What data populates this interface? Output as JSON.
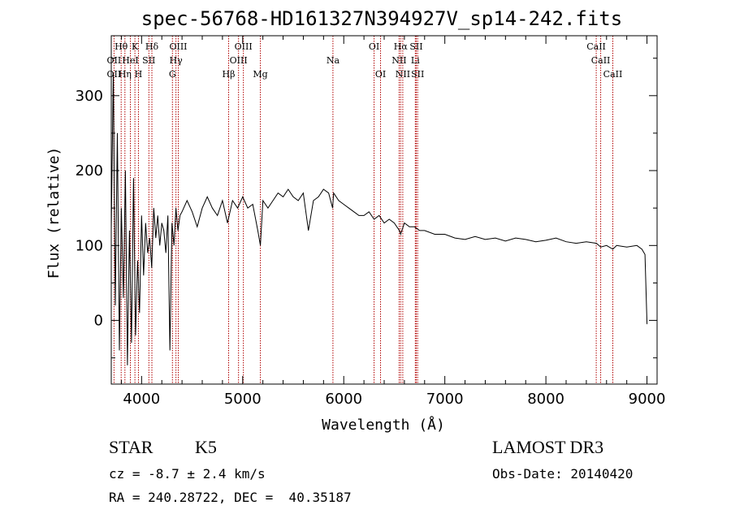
{
  "chart_data": {
    "type": "line",
    "title": "spec-56768-HD161327N394927V_sp14-242.fits",
    "xlabel": "Wavelength (Å)",
    "ylabel": "Flux (relative)",
    "xlim": [
      3700,
      9100
    ],
    "ylim": [
      -85,
      380
    ],
    "xticks": [
      4000,
      5000,
      6000,
      7000,
      8000,
      9000
    ],
    "yticks": [
      0,
      100,
      200,
      300
    ],
    "xtick_labels": [
      "4000",
      "5000",
      "6000",
      "7000",
      "8000",
      "9000"
    ],
    "ytick_labels": [
      "0",
      "100",
      "200",
      "300"
    ],
    "series": [
      {
        "name": "flux",
        "x": [
          3700,
          3720,
          3740,
          3760,
          3780,
          3800,
          3820,
          3840,
          3860,
          3880,
          3900,
          3920,
          3940,
          3960,
          3980,
          4000,
          4020,
          4040,
          4060,
          4080,
          4100,
          4120,
          4140,
          4160,
          4180,
          4200,
          4220,
          4240,
          4260,
          4280,
          4300,
          4320,
          4340,
          4360,
          4380,
          4400,
          4450,
          4500,
          4550,
          4600,
          4650,
          4700,
          4750,
          4800,
          4850,
          4900,
          4950,
          5000,
          5050,
          5100,
          5150,
          5175,
          5200,
          5250,
          5300,
          5350,
          5400,
          5450,
          5500,
          5550,
          5600,
          5650,
          5700,
          5750,
          5800,
          5850,
          5890,
          5900,
          5950,
          6000,
          6050,
          6100,
          6150,
          6200,
          6250,
          6300,
          6350,
          6400,
          6450,
          6500,
          6550,
          6563,
          6600,
          6650,
          6700,
          6750,
          6800,
          6900,
          7000,
          7100,
          7200,
          7300,
          7400,
          7500,
          7600,
          7700,
          7800,
          7900,
          8000,
          8100,
          8200,
          8300,
          8400,
          8500,
          8542,
          8600,
          8662,
          8700,
          8800,
          8900,
          8950,
          8980,
          9000
        ],
        "y": [
          120,
          330,
          20,
          250,
          -40,
          150,
          30,
          200,
          -60,
          120,
          -30,
          190,
          -20,
          80,
          10,
          140,
          60,
          130,
          90,
          110,
          70,
          150,
          110,
          140,
          100,
          130,
          120,
          90,
          140,
          -40,
          130,
          100,
          150,
          120,
          140,
          145,
          160,
          145,
          125,
          150,
          165,
          150,
          140,
          160,
          130,
          160,
          150,
          165,
          150,
          155,
          120,
          100,
          160,
          150,
          160,
          170,
          165,
          175,
          165,
          160,
          170,
          120,
          160,
          165,
          175,
          170,
          150,
          170,
          160,
          155,
          150,
          145,
          140,
          140,
          145,
          135,
          140,
          130,
          135,
          130,
          120,
          115,
          130,
          125,
          125,
          120,
          120,
          115,
          115,
          110,
          108,
          112,
          108,
          110,
          106,
          110,
          108,
          105,
          107,
          110,
          105,
          103,
          105,
          103,
          98,
          100,
          95,
          100,
          98,
          100,
          95,
          88,
          -5
        ]
      }
    ],
    "line_labels": [
      {
        "name": "OII",
        "wavelength": 3727,
        "row": 2
      },
      {
        "name": "Hθ",
        "wavelength": 3798,
        "row": 1
      },
      {
        "name": "OII",
        "wavelength": 3727,
        "row": 3
      },
      {
        "name": "Hη",
        "wavelength": 3835,
        "row": 3
      },
      {
        "name": "K",
        "wavelength": 3934,
        "row": 1
      },
      {
        "name": "HeI",
        "wavelength": 3889,
        "row": 2
      },
      {
        "name": "H",
        "wavelength": 3969,
        "row": 3
      },
      {
        "name": "Hδ",
        "wavelength": 4102,
        "row": 1
      },
      {
        "name": "SII",
        "wavelength": 4072,
        "row": 2
      },
      {
        "name": "OIII",
        "wavelength": 4363,
        "row": 1
      },
      {
        "name": "Hγ",
        "wavelength": 4340,
        "row": 2
      },
      {
        "name": "G",
        "wavelength": 4305,
        "row": 3
      },
      {
        "name": "Hβ",
        "wavelength": 4861,
        "row": 3
      },
      {
        "name": "OIII",
        "wavelength": 5007,
        "row": 1
      },
      {
        "name": "OIII",
        "wavelength": 4959,
        "row": 2
      },
      {
        "name": "Mg",
        "wavelength": 5175,
        "row": 3
      },
      {
        "name": "Na",
        "wavelength": 5893,
        "row": 2
      },
      {
        "name": "OI",
        "wavelength": 6300,
        "row": 1
      },
      {
        "name": "OI",
        "wavelength": 6364,
        "row": 3
      },
      {
        "name": "Hα",
        "wavelength": 6563,
        "row": 1
      },
      {
        "name": "NII",
        "wavelength": 6548,
        "row": 2
      },
      {
        "name": "NII",
        "wavelength": 6584,
        "row": 3
      },
      {
        "name": "SII",
        "wavelength": 6717,
        "row": 1
      },
      {
        "name": "Li",
        "wavelength": 6708,
        "row": 2
      },
      {
        "name": "SII",
        "wavelength": 6731,
        "row": 3
      },
      {
        "name": "CaII",
        "wavelength": 8498,
        "row": 1
      },
      {
        "name": "CaII",
        "wavelength": 8542,
        "row": 2
      },
      {
        "name": "CaII",
        "wavelength": 8662,
        "row": 3
      }
    ],
    "marker_lines": [
      3727,
      3798,
      3835,
      3889,
      3934,
      3969,
      4072,
      4102,
      4305,
      4340,
      4363,
      4861,
      4959,
      5007,
      5175,
      5893,
      6300,
      6364,
      6548,
      6563,
      6584,
      6708,
      6717,
      6731,
      8498,
      8542,
      8662
    ]
  },
  "info": {
    "object_class": "STAR",
    "subclass": "K5",
    "survey": "LAMOST DR3",
    "cz": "cz = -8.7 ± 2.4 km/s",
    "obs_date": "Obs-Date: 20140420",
    "coords": "RA = 240.28722, DEC =  40.35187"
  },
  "colors": {
    "axis": "#000000",
    "spectrum": "#000000",
    "marker": "#b00000"
  }
}
